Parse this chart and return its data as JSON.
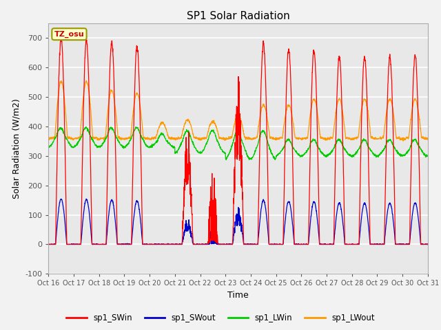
{
  "title": "SP1 Solar Radiation",
  "ylabel": "Solar Radiation (W/m2)",
  "xlabel": "Time",
  "ylim": [
    -100,
    750
  ],
  "yticks": [
    -100,
    0,
    100,
    200,
    300,
    400,
    500,
    600,
    700
  ],
  "xtick_labels": [
    "Oct 16",
    "Oct 17",
    "Oct 18",
    "Oct 19",
    "Oct 20",
    "Oct 21",
    "Oct 22",
    "Oct 23",
    "Oct 24",
    "Oct 25",
    "Oct 26",
    "Oct 27",
    "Oct 28",
    "Oct 29",
    "Oct 30",
    "Oct 31"
  ],
  "bg_color": "#e8e8e8",
  "grid_color": "#ffffff",
  "timezone_label": "TZ_osu",
  "legend_entries": [
    "sp1_SWin",
    "sp1_SWout",
    "sp1_LWin",
    "sp1_LWout"
  ],
  "line_colors": [
    "#ff0000",
    "#0000cc",
    "#00cc00",
    "#ff9900"
  ],
  "title_fontsize": 11,
  "label_fontsize": 9,
  "tick_fontsize": 8
}
